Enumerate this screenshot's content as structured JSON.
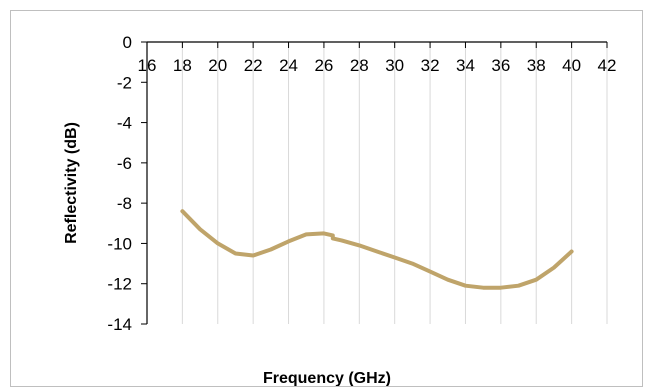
{
  "chart_data": {
    "type": "line",
    "title": "",
    "xlabel": "Frequency (GHz)",
    "ylabel": "Reflectivity (dB)",
    "xlim": [
      16,
      42
    ],
    "ylim": [
      -14,
      0
    ],
    "x_ticks": [
      "16",
      "18",
      "20",
      "22",
      "24",
      "26",
      "28",
      "30",
      "32",
      "34",
      "36",
      "38",
      "40",
      "42"
    ],
    "y_ticks": [
      "0",
      "-2",
      "-4",
      "-6",
      "-8",
      "-10",
      "-12",
      "-14"
    ],
    "grid": "vertical",
    "legend": "none",
    "series": [
      {
        "color": "#bfa46a",
        "points": [
          [
            18,
            -8.4
          ],
          [
            19,
            -9.3
          ],
          [
            20,
            -10.0
          ],
          [
            21,
            -10.5
          ],
          [
            22,
            -10.6
          ],
          [
            23,
            -10.3
          ],
          [
            24,
            -9.9
          ],
          [
            25,
            -9.55
          ],
          [
            26,
            -9.5
          ],
          [
            26.5,
            -9.6
          ],
          [
            26.5,
            -9.75
          ],
          [
            27,
            -9.85
          ],
          [
            28,
            -10.1
          ],
          [
            29,
            -10.4
          ],
          [
            30,
            -10.7
          ],
          [
            31,
            -11.0
          ],
          [
            32,
            -11.4
          ],
          [
            33,
            -11.8
          ],
          [
            34,
            -12.1
          ],
          [
            35,
            -12.2
          ],
          [
            36,
            -12.2
          ],
          [
            37,
            -12.1
          ],
          [
            38,
            -11.8
          ],
          [
            39,
            -11.2
          ],
          [
            40,
            -10.4
          ]
        ]
      }
    ]
  }
}
